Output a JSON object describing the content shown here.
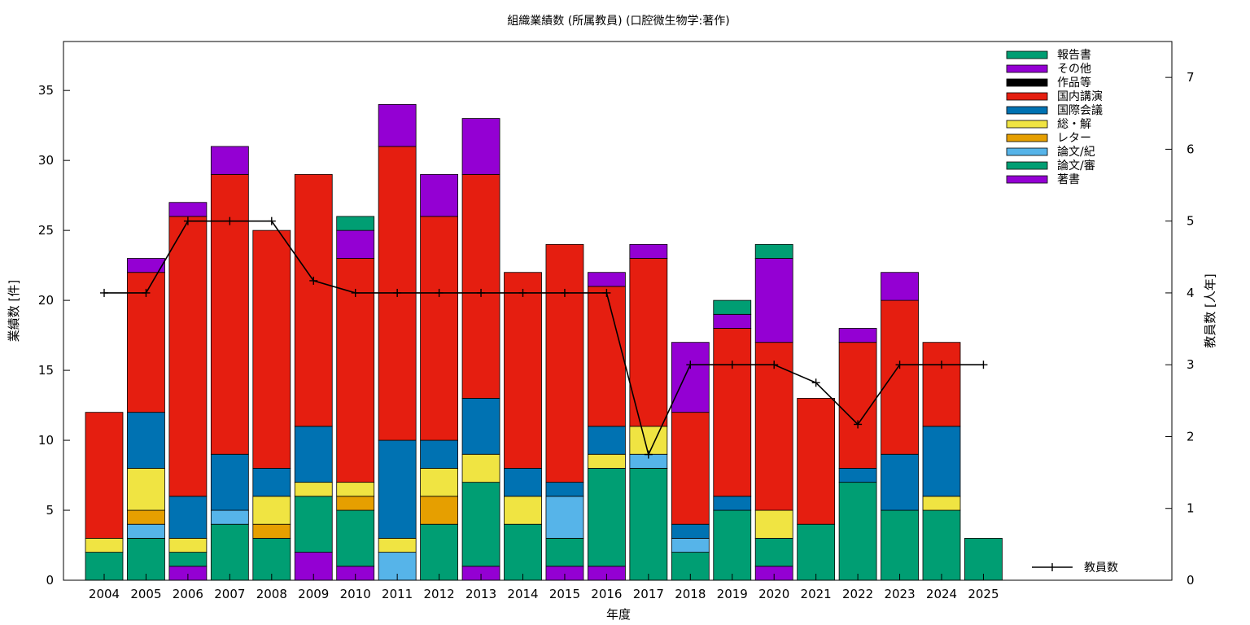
{
  "chart_data": {
    "type": "bar",
    "stacked": true,
    "title": "組織業績数 (所属教員) (口腔微生物学:著作)",
    "xlabel": "年度",
    "ylabel": "業績数 [件]",
    "y2label": "教員数 [人年]",
    "ylim": [
      0,
      38.5
    ],
    "y2lim": [
      0,
      7.5
    ],
    "yticks": [
      0,
      5,
      10,
      15,
      20,
      25,
      30,
      35
    ],
    "y2ticks": [
      0,
      1,
      2,
      3,
      4,
      5,
      6,
      7
    ],
    "grid": false,
    "legend_position": "top-right",
    "categories": [
      "2004",
      "2005",
      "2006",
      "2007",
      "2008",
      "2009",
      "2010",
      "2011",
      "2012",
      "2013",
      "2014",
      "2015",
      "2016",
      "2017",
      "2018",
      "2019",
      "2020",
      "2021",
      "2022",
      "2023",
      "2024",
      "2025"
    ],
    "series": [
      {
        "name": "著書",
        "color": "#9400d3",
        "values": [
          0,
          0,
          1,
          0,
          0,
          2,
          1,
          0,
          0,
          1,
          0,
          1,
          1,
          0,
          0,
          0,
          1,
          0,
          0,
          0,
          0,
          0
        ]
      },
      {
        "name": "論文/審",
        "color": "#009e73",
        "values": [
          2,
          3,
          1,
          4,
          3,
          4,
          4,
          0,
          4,
          6,
          4,
          2,
          7,
          8,
          2,
          5,
          2,
          4,
          7,
          5,
          5,
          3
        ]
      },
      {
        "name": "論文/紀",
        "color": "#56b4e9",
        "values": [
          0,
          1,
          0,
          1,
          0,
          0,
          0,
          2,
          0,
          0,
          0,
          3,
          0,
          1,
          1,
          0,
          0,
          0,
          0,
          0,
          0,
          0
        ]
      },
      {
        "name": "レター",
        "color": "#e69f00",
        "values": [
          0,
          1,
          0,
          0,
          1,
          0,
          1,
          0,
          2,
          0,
          0,
          0,
          0,
          0,
          0,
          0,
          0,
          0,
          0,
          0,
          0,
          0
        ]
      },
      {
        "name": "総・解",
        "color": "#f0e442",
        "values": [
          1,
          3,
          1,
          0,
          2,
          1,
          1,
          1,
          2,
          2,
          2,
          0,
          1,
          2,
          0,
          0,
          2,
          0,
          0,
          0,
          1,
          0
        ]
      },
      {
        "name": "国際会議",
        "color": "#0072b2",
        "values": [
          0,
          4,
          3,
          4,
          2,
          4,
          0,
          7,
          2,
          4,
          2,
          1,
          2,
          0,
          1,
          1,
          0,
          0,
          1,
          4,
          5,
          0
        ]
      },
      {
        "name": "国内講演",
        "color": "#e51e10",
        "values": [
          9,
          10,
          20,
          20,
          17,
          18,
          16,
          21,
          16,
          16,
          14,
          17,
          10,
          12,
          8,
          12,
          12,
          9,
          9,
          11,
          6,
          0
        ]
      },
      {
        "name": "作品等",
        "color": "#000000",
        "values": [
          0,
          0,
          0,
          0,
          0,
          0,
          0,
          0,
          0,
          0,
          0,
          0,
          0,
          0,
          0,
          0,
          0,
          0,
          0,
          0,
          0,
          0
        ]
      },
      {
        "name": "その他",
        "color": "#9400d3",
        "values": [
          0,
          1,
          1,
          2,
          0,
          0,
          2,
          3,
          3,
          4,
          0,
          0,
          1,
          1,
          5,
          1,
          6,
          0,
          1,
          2,
          0,
          0
        ]
      },
      {
        "name": "報告書",
        "color": "#009e73",
        "values": [
          0,
          0,
          0,
          0,
          0,
          0,
          1,
          0,
          0,
          0,
          0,
          0,
          0,
          0,
          0,
          1,
          1,
          0,
          0,
          0,
          0,
          0
        ]
      }
    ],
    "line_series": {
      "name": "教員数",
      "axis": "y2",
      "color": "#000000",
      "values": [
        4,
        4,
        5,
        5,
        5,
        4.17,
        4,
        4,
        4,
        4,
        4,
        4,
        4,
        1.75,
        3,
        3,
        3,
        2.75,
        2.17,
        3,
        3,
        3
      ]
    }
  }
}
